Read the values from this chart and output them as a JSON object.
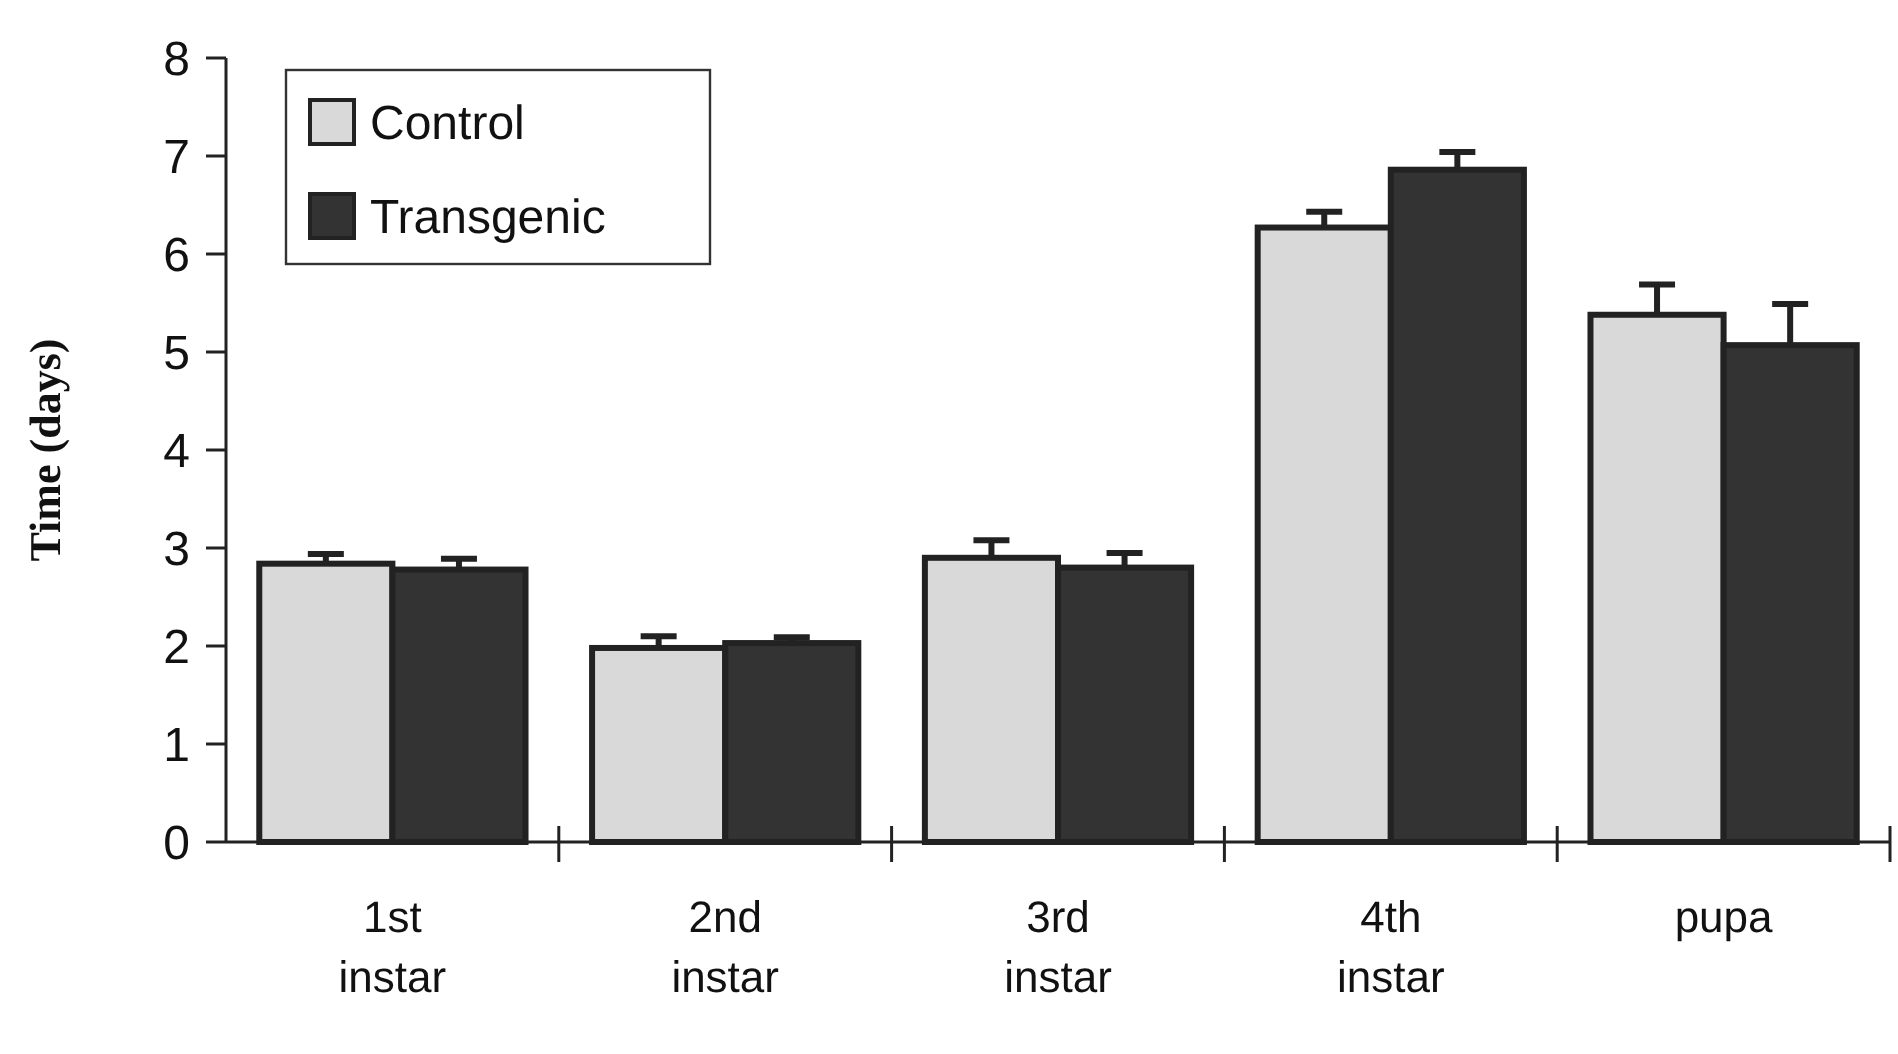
{
  "chart_data": {
    "type": "bar",
    "ylabel": "Time (days)",
    "categories": [
      "1st instar",
      "2nd instar",
      "3rd instar",
      "4th instar",
      "pupa"
    ],
    "series": [
      {
        "name": "Control",
        "color": "#d9d9d9",
        "values": [
          2.84,
          1.98,
          2.9,
          6.27,
          5.38
        ],
        "errors": [
          0.1,
          0.12,
          0.18,
          0.16,
          0.31
        ]
      },
      {
        "name": "Transgenic",
        "color": "#333333",
        "values": [
          2.78,
          2.03,
          2.8,
          6.86,
          5.07
        ],
        "errors": [
          0.11,
          0.06,
          0.15,
          0.18,
          0.42
        ]
      }
    ],
    "ylim": [
      0,
      8
    ],
    "yticks": [
      0,
      1,
      2,
      3,
      4,
      5,
      6,
      7,
      8
    ],
    "legend": "top left",
    "grid": false
  }
}
